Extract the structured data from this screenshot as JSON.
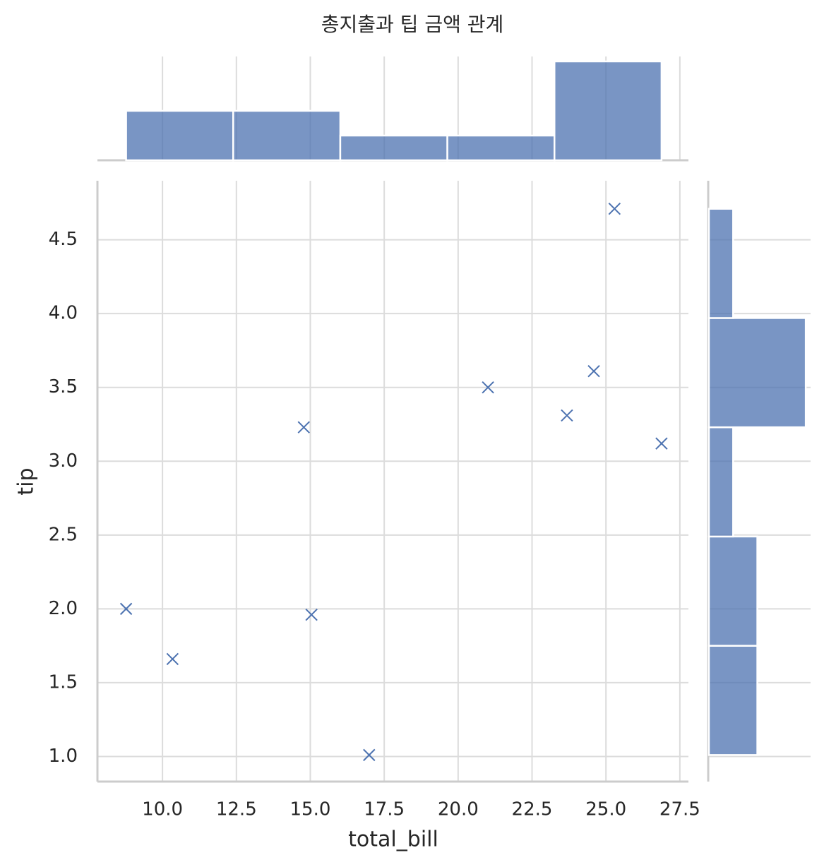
{
  "chart_data": [
    {
      "type": "scatter",
      "title": "총지출과 팁 금액 관계",
      "x_label": "total_bill",
      "y_label": "tip",
      "x": [
        16.99,
        10.34,
        21.01,
        23.68,
        24.59,
        25.29,
        8.77,
        26.88,
        15.04,
        14.78
      ],
      "y": [
        1.01,
        1.66,
        3.5,
        3.31,
        3.61,
        4.71,
        2.0,
        3.12,
        1.96,
        3.23
      ],
      "color": "#4c72b0",
      "marker": "x",
      "xlim": [
        7.8,
        27.79
      ],
      "ylim": [
        0.83,
        4.9
      ],
      "xticks": [
        {
          "value": 10,
          "label": "10.0"
        },
        12.5,
        {
          "value": 15,
          "label": "15.0"
        },
        17.5,
        {
          "value": 20,
          "label": "20.0"
        },
        22.5,
        {
          "value": 25,
          "label": "25.0"
        },
        27.5
      ],
      "yticks": [
        {
          "value": 1,
          "label": "1.0"
        },
        1.5,
        {
          "value": 2,
          "label": "2.0"
        },
        2.5,
        {
          "value": 3,
          "label": "3.0"
        },
        3.5,
        {
          "value": 4,
          "label": "4.0"
        },
        4.5
      ],
      "grid": true
    },
    {
      "type": "histogram",
      "orientation": "vertical",
      "bins": [
        8.77,
        12.392,
        16.014,
        19.636,
        23.258,
        26.88
      ],
      "values": [
        2,
        2,
        1,
        1,
        4
      ],
      "color": "#4c72b0",
      "ylim": [
        0,
        4.2
      ]
    },
    {
      "type": "histogram",
      "orientation": "horizontal",
      "bins": [
        1.01,
        1.75,
        2.49,
        3.23,
        3.97,
        4.71
      ],
      "values": [
        2,
        2,
        1,
        4,
        1
      ],
      "color": "#4c72b0",
      "xlim": [
        0,
        4.2
      ]
    }
  ]
}
